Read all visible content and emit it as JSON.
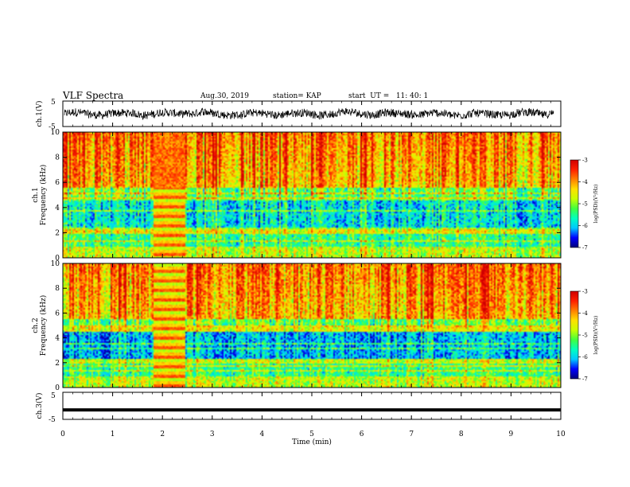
{
  "header": {
    "title": "VLF Spectra",
    "date": "Aug.30, 2019",
    "station": "station= KAP",
    "start": "start  UT =   11: 40: 1"
  },
  "chart_data": [
    {
      "type": "line",
      "name": "ch1-waveform",
      "ylabel": "ch.1(V)",
      "ylim": [
        -5,
        5
      ],
      "yticks": [
        "5",
        "-5"
      ],
      "note": "noisy broadband waveform"
    },
    {
      "type": "heatmap",
      "name": "ch1-spectrogram",
      "ylabel_top": "ch.1",
      "ylabel": "Frequency  (kHz)",
      "ylim": [
        0,
        10
      ],
      "yticks": [
        "0",
        "2",
        "4",
        "6",
        "8",
        "10"
      ],
      "colorbar": {
        "label": "log(PSD)(V²/Hz)",
        "range": [
          -7,
          -3
        ],
        "ticks": [
          "-3",
          "-4",
          "-5",
          "-6",
          "-7"
        ]
      }
    },
    {
      "type": "heatmap",
      "name": "ch2-spectrogram",
      "ylabel_top": "ch.2",
      "ylabel": "Frequency  (kHz)",
      "ylim": [
        0,
        10
      ],
      "yticks": [
        "0",
        "2",
        "4",
        "6",
        "8",
        "10"
      ],
      "colorbar": {
        "label": "log(PSD)(V²/Hz)",
        "range": [
          -7,
          -3
        ],
        "ticks": [
          "-3",
          "-4",
          "-5",
          "-6",
          "-7"
        ]
      }
    },
    {
      "type": "line",
      "name": "ch3-waveform",
      "ylabel": "ch.3(V)",
      "ylim": [
        -5,
        5
      ],
      "yticks": [
        "5",
        "-5"
      ],
      "constant_value": -1.5
    }
  ],
  "xaxis": {
    "label": "Time  (min)",
    "range": [
      0,
      10
    ],
    "ticks": [
      "0",
      "1",
      "2",
      "3",
      "4",
      "5",
      "6",
      "7",
      "8",
      "9",
      "10"
    ]
  },
  "colors": {
    "colormap": [
      "#00007a",
      "#0000ff",
      "#00c8ff",
      "#00ffc0",
      "#40ff40",
      "#c8ff00",
      "#ffe000",
      "#ff8000",
      "#ff2000",
      "#d00000"
    ]
  }
}
